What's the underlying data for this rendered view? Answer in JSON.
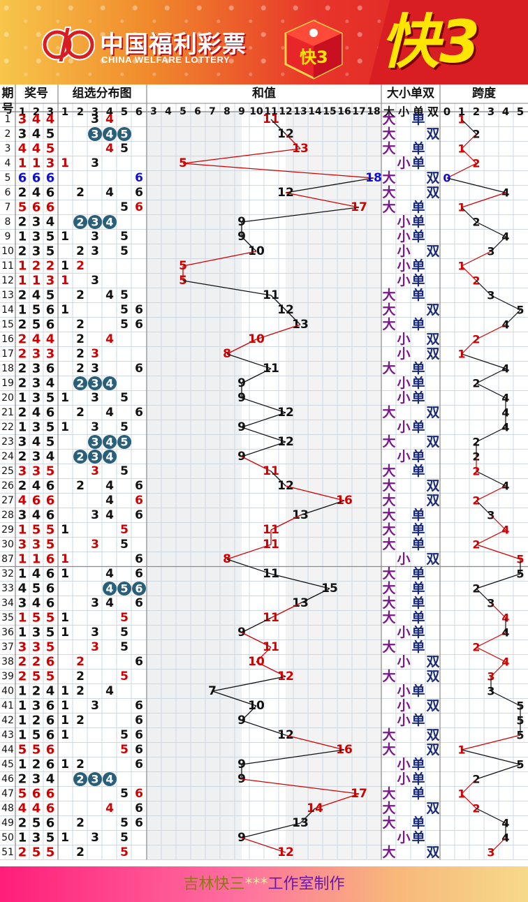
{
  "banner": {
    "brand_cn": "中国福利彩票",
    "brand_en": "CHINA WELFARE LOTTERY",
    "cube_text": "快3",
    "title": "快3"
  },
  "header": {
    "period_1": "期",
    "period_2": "号",
    "prize": "奖号",
    "group": "组选分布图",
    "sum": "和值",
    "bigsmall_oddeven": "大小单双",
    "span": "跨度",
    "prize_digits": [
      "1",
      "2",
      "3"
    ],
    "group_digits": [
      "1",
      "2",
      "3",
      "4",
      "5",
      "6"
    ],
    "sum_values": [
      "3",
      "4",
      "5",
      "6",
      "7",
      "8",
      "9",
      "10",
      "11",
      "12",
      "13",
      "14",
      "15",
      "16",
      "17",
      "18"
    ],
    "bso_sub": [
      "大",
      "小",
      "单",
      "双"
    ],
    "span_digits": [
      "0",
      "1",
      "2",
      "3",
      "4",
      "5"
    ]
  },
  "labels": {
    "big": "大",
    "small": "小",
    "odd": "单",
    "even": "双"
  },
  "colors": {
    "red": "#d00000",
    "blue": "#1010d0",
    "black": "#111111",
    "purple": "#7a1a8a",
    "navy": "#1a2a7a",
    "circle": "#2a5f7a",
    "grid": "#cfd8e0"
  },
  "rows": [
    {
      "p": "1",
      "n": [
        3,
        4,
        4
      ]
    },
    {
      "p": "2",
      "n": [
        3,
        4,
        5
      ]
    },
    {
      "p": "3",
      "n": [
        4,
        4,
        5
      ]
    },
    {
      "p": "4",
      "n": [
        1,
        1,
        3
      ]
    },
    {
      "p": "5",
      "n": [
        6,
        6,
        6
      ]
    },
    {
      "p": "6",
      "n": [
        2,
        4,
        6
      ]
    },
    {
      "p": "7",
      "n": [
        5,
        6,
        6
      ]
    },
    {
      "p": "8",
      "n": [
        2,
        3,
        4
      ]
    },
    {
      "p": "9",
      "n": [
        1,
        3,
        5
      ]
    },
    {
      "p": "10",
      "n": [
        2,
        3,
        5
      ]
    },
    {
      "p": "11",
      "n": [
        1,
        2,
        2
      ]
    },
    {
      "p": "12",
      "n": [
        1,
        1,
        3
      ]
    },
    {
      "p": "13",
      "n": [
        2,
        4,
        5
      ]
    },
    {
      "p": "14",
      "n": [
        1,
        5,
        6
      ]
    },
    {
      "p": "15",
      "n": [
        2,
        5,
        6
      ]
    },
    {
      "p": "16",
      "n": [
        2,
        4,
        4
      ]
    },
    {
      "p": "17",
      "n": [
        2,
        3,
        3
      ]
    },
    {
      "p": "18",
      "n": [
        2,
        3,
        6
      ]
    },
    {
      "p": "19",
      "n": [
        2,
        3,
        4
      ]
    },
    {
      "p": "20",
      "n": [
        1,
        3,
        5
      ]
    },
    {
      "p": "21",
      "n": [
        2,
        4,
        6
      ]
    },
    {
      "p": "22",
      "n": [
        1,
        3,
        5
      ]
    },
    {
      "p": "23",
      "n": [
        3,
        4,
        5
      ]
    },
    {
      "p": "24",
      "n": [
        2,
        3,
        4
      ]
    },
    {
      "p": "25",
      "n": [
        3,
        3,
        5
      ]
    },
    {
      "p": "26",
      "n": [
        2,
        4,
        6
      ]
    },
    {
      "p": "27",
      "n": [
        4,
        6,
        6
      ]
    },
    {
      "p": "28",
      "n": [
        3,
        4,
        6
      ]
    },
    {
      "p": "29",
      "n": [
        1,
        5,
        5
      ]
    },
    {
      "p": "30",
      "n": [
        3,
        3,
        5
      ]
    },
    {
      "p": "87",
      "n": [
        1,
        1,
        6
      ]
    },
    {
      "p": "32",
      "n": [
        1,
        4,
        6
      ]
    },
    {
      "p": "33",
      "n": [
        4,
        5,
        6
      ]
    },
    {
      "p": "34",
      "n": [
        3,
        4,
        6
      ]
    },
    {
      "p": "35",
      "n": [
        1,
        5,
        5
      ]
    },
    {
      "p": "36",
      "n": [
        1,
        3,
        5
      ]
    },
    {
      "p": "37",
      "n": [
        3,
        3,
        5
      ]
    },
    {
      "p": "38",
      "n": [
        2,
        2,
        6
      ]
    },
    {
      "p": "39",
      "n": [
        2,
        5,
        5
      ]
    },
    {
      "p": "40",
      "n": [
        1,
        2,
        4
      ]
    },
    {
      "p": "41",
      "n": [
        1,
        3,
        6
      ]
    },
    {
      "p": "42",
      "n": [
        1,
        2,
        6
      ]
    },
    {
      "p": "43",
      "n": [
        1,
        5,
        6
      ]
    },
    {
      "p": "44",
      "n": [
        5,
        5,
        6
      ]
    },
    {
      "p": "45",
      "n": [
        1,
        2,
        6
      ]
    },
    {
      "p": "46",
      "n": [
        2,
        3,
        4
      ]
    },
    {
      "p": "47",
      "n": [
        5,
        6,
        6
      ]
    },
    {
      "p": "48",
      "n": [
        4,
        4,
        6
      ]
    },
    {
      "p": "49",
      "n": [
        2,
        5,
        6
      ]
    },
    {
      "p": "50",
      "n": [
        1,
        3,
        5
      ]
    },
    {
      "p": "51",
      "n": [
        2,
        5,
        5
      ]
    }
  ],
  "footer": {
    "part1": "吉林快三",
    "part2": "***",
    "part3": "工作室制作"
  }
}
